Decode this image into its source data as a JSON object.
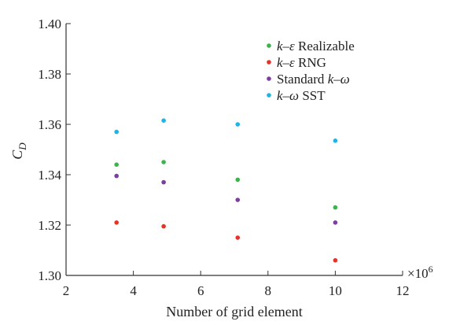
{
  "chart_data": {
    "type": "scatter",
    "title": "",
    "xlabel": "Number of grid element",
    "ylabel": "C_D",
    "ylabel_main": "C",
    "ylabel_sub": "D",
    "x_multiplier": "×10",
    "x_multiplier_exp": "6",
    "xlim": [
      2,
      12
    ],
    "ylim": [
      1.3,
      1.4
    ],
    "xticks": [
      2,
      4,
      6,
      8,
      10,
      12
    ],
    "yticks": [
      1.3,
      1.32,
      1.34,
      1.36,
      1.38,
      1.4
    ],
    "xtick_labels": [
      "2",
      "4",
      "6",
      "8",
      "10",
      "12"
    ],
    "ytick_labels": [
      "1.30",
      "1.32",
      "1.34",
      "1.36",
      "1.38",
      "1.40"
    ],
    "grid": false,
    "legend_position": "top-right",
    "series": [
      {
        "name": "k–ε Realizable",
        "color": "#3cb44b",
        "points": [
          [
            3.5,
            1.344
          ],
          [
            4.9,
            1.345
          ],
          [
            7.1,
            1.338
          ],
          [
            10.0,
            1.327
          ]
        ]
      },
      {
        "name": "k–ε RNG",
        "color": "#e6332a",
        "points": [
          [
            3.5,
            1.321
          ],
          [
            4.9,
            1.3195
          ],
          [
            7.1,
            1.315
          ],
          [
            10.0,
            1.306
          ]
        ]
      },
      {
        "name": "Standard k–ω",
        "color": "#7b3fa0",
        "points": [
          [
            3.5,
            1.3395
          ],
          [
            4.9,
            1.337
          ],
          [
            7.1,
            1.33
          ],
          [
            10.0,
            1.321
          ]
        ]
      },
      {
        "name": "k–ω SST",
        "color": "#1fb3e6",
        "points": [
          [
            3.5,
            1.357
          ],
          [
            4.9,
            1.3615
          ],
          [
            7.1,
            1.36
          ],
          [
            10.0,
            1.3535
          ]
        ]
      }
    ]
  }
}
